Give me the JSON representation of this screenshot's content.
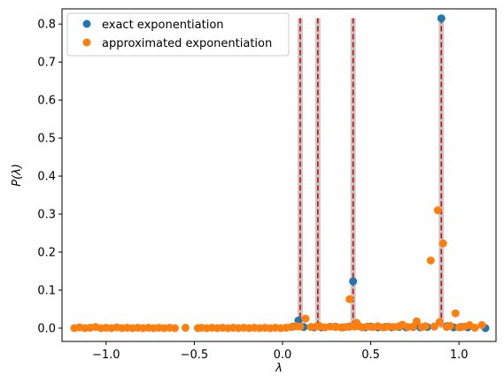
{
  "chart_data": {
    "type": "scatter",
    "xlabel": "λ",
    "ylabel": "P(λ)",
    "xlim": [
      -1.25,
      1.21
    ],
    "ylim": [
      -0.035,
      0.84
    ],
    "xticks": [
      {
        "value": -1.0,
        "label": "−1.0"
      },
      {
        "value": -0.5,
        "label": "−0.5"
      },
      {
        "value": 0.0,
        "label": "0.0"
      },
      {
        "value": 0.5,
        "label": "0.5"
      },
      {
        "value": 1.0,
        "label": "1.0"
      }
    ],
    "yticks": [
      {
        "value": 0.0,
        "label": "0.0"
      },
      {
        "value": 0.1,
        "label": "0.1"
      },
      {
        "value": 0.2,
        "label": "0.2"
      },
      {
        "value": 0.3,
        "label": "0.3"
      },
      {
        "value": 0.4,
        "label": "0.4"
      },
      {
        "value": 0.5,
        "label": "0.5"
      },
      {
        "value": 0.6,
        "label": "0.6"
      },
      {
        "value": 0.7,
        "label": "0.7"
      },
      {
        "value": 0.8,
        "label": "0.8"
      }
    ],
    "legend_position": "top-left",
    "reference_lines": {
      "x": [
        0.1,
        0.2,
        0.4,
        0.9
      ],
      "y_top": 0.8155,
      "line_color": "#dd0000",
      "band_color": "#c8c8c8",
      "band_halfwidth": 0.015
    },
    "series": [
      {
        "name": "exact exponentiation",
        "color": "#1f77b4",
        "points": [
          [
            0.09,
            0.02
          ],
          [
            0.06,
            0.004
          ],
          [
            0.12,
            0.003
          ],
          [
            0.18,
            0.002
          ],
          [
            0.22,
            0.002
          ],
          [
            0.3,
            0.004
          ],
          [
            0.34,
            0.002
          ],
          [
            0.38,
            0.004
          ],
          [
            0.4,
            0.123
          ],
          [
            0.43,
            0.006
          ],
          [
            0.47,
            0.002
          ],
          [
            0.5,
            0.004
          ],
          [
            0.54,
            0.002
          ],
          [
            0.58,
            0.003
          ],
          [
            0.62,
            0.002
          ],
          [
            0.66,
            0.003
          ],
          [
            0.7,
            0.002
          ],
          [
            0.74,
            0.003
          ],
          [
            0.78,
            0.002
          ],
          [
            0.82,
            0.003
          ],
          [
            0.86,
            0.004
          ],
          [
            0.9,
            0.815
          ],
          [
            0.93,
            0.005
          ],
          [
            0.97,
            0.002
          ],
          [
            1.01,
            0.003
          ],
          [
            1.05,
            0.002
          ],
          [
            1.15,
            0.0
          ]
        ]
      },
      {
        "name": "approximated exponentiation",
        "color": "#ff7f0e",
        "points": [
          [
            -1.18,
            0.0
          ],
          [
            -1.15,
            0.002
          ],
          [
            -1.12,
            0.0
          ],
          [
            -1.09,
            0.001
          ],
          [
            -1.06,
            0.003
          ],
          [
            -1.03,
            0.0
          ],
          [
            -1.0,
            0.001
          ],
          [
            -0.97,
            0.0
          ],
          [
            -0.94,
            0.002
          ],
          [
            -0.91,
            0.0
          ],
          [
            -0.88,
            0.001
          ],
          [
            -0.85,
            0.0
          ],
          [
            -0.82,
            0.001
          ],
          [
            -0.79,
            0.0
          ],
          [
            -0.76,
            0.001
          ],
          [
            -0.73,
            0.0
          ],
          [
            -0.7,
            0.001
          ],
          [
            -0.67,
            0.0
          ],
          [
            -0.64,
            0.001
          ],
          [
            -0.61,
            0.0
          ],
          [
            -0.55,
            0.001
          ],
          [
            -0.48,
            0.0
          ],
          [
            -0.46,
            0.001
          ],
          [
            -0.43,
            0.0
          ],
          [
            -0.4,
            0.001
          ],
          [
            -0.37,
            0.0
          ],
          [
            -0.34,
            0.001
          ],
          [
            -0.31,
            0.0
          ],
          [
            -0.28,
            0.001
          ],
          [
            -0.25,
            0.0
          ],
          [
            -0.22,
            0.001
          ],
          [
            -0.19,
            0.0
          ],
          [
            -0.16,
            0.001
          ],
          [
            -0.13,
            0.0
          ],
          [
            -0.1,
            0.001
          ],
          [
            -0.07,
            0.0
          ],
          [
            -0.04,
            0.001
          ],
          [
            -0.01,
            0.0
          ],
          [
            0.02,
            0.001
          ],
          [
            0.05,
            0.003
          ],
          [
            0.08,
            0.005
          ],
          [
            0.1,
            0.004
          ],
          [
            0.13,
            0.025
          ],
          [
            0.16,
            0.003
          ],
          [
            0.19,
            0.004
          ],
          [
            0.21,
            0.005
          ],
          [
            0.24,
            0.002
          ],
          [
            0.27,
            0.004
          ],
          [
            0.3,
            0.003
          ],
          [
            0.33,
            0.002
          ],
          [
            0.36,
            0.003
          ],
          [
            0.38,
            0.076
          ],
          [
            0.39,
            0.005
          ],
          [
            0.41,
            0.004
          ],
          [
            0.42,
            0.014
          ],
          [
            0.45,
            0.002
          ],
          [
            0.48,
            0.004
          ],
          [
            0.51,
            0.003
          ],
          [
            0.54,
            0.005
          ],
          [
            0.57,
            0.002
          ],
          [
            0.6,
            0.004
          ],
          [
            0.63,
            0.003
          ],
          [
            0.66,
            0.005
          ],
          [
            0.68,
            0.009
          ],
          [
            0.71,
            0.003
          ],
          [
            0.74,
            0.004
          ],
          [
            0.76,
            0.018
          ],
          [
            0.79,
            0.003
          ],
          [
            0.81,
            0.005
          ],
          [
            0.84,
            0.178
          ],
          [
            0.86,
            0.004
          ],
          [
            0.88,
            0.31
          ],
          [
            0.89,
            0.016
          ],
          [
            0.91,
            0.223
          ],
          [
            0.93,
            0.003
          ],
          [
            0.95,
            0.006
          ],
          [
            0.98,
            0.039
          ],
          [
            1.0,
            0.002
          ],
          [
            1.03,
            0.004
          ],
          [
            1.06,
            0.008
          ],
          [
            1.09,
            0.001
          ],
          [
            1.13,
            0.008
          ]
        ]
      }
    ]
  }
}
